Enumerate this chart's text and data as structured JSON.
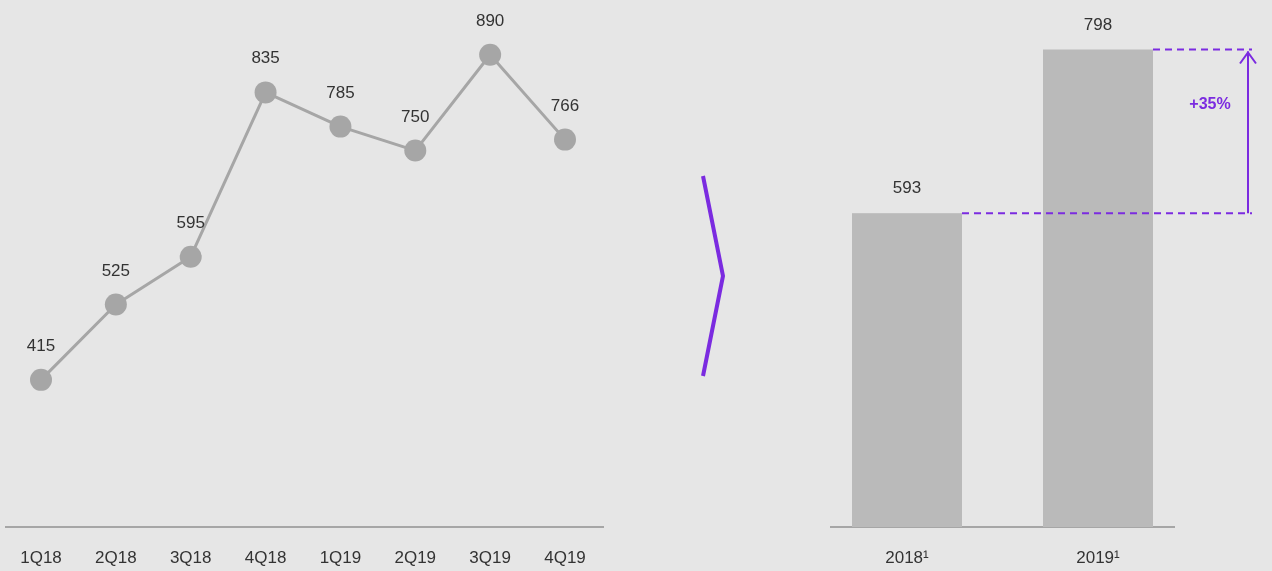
{
  "chart_data": [
    {
      "type": "line",
      "categories": [
        "1Q18",
        "2Q18",
        "3Q18",
        "4Q18",
        "1Q19",
        "2Q19",
        "3Q19",
        "4Q19"
      ],
      "series": [
        {
          "color": "#a6a6a6",
          "values": [
            415,
            525,
            595,
            835,
            785,
            750,
            890,
            766
          ]
        }
      ],
      "ylim": [
        200,
        970
      ],
      "marker": "circle",
      "data_labels": true
    },
    {
      "type": "bar",
      "categories": [
        "2018¹",
        "2019¹"
      ],
      "values": [
        593,
        798
      ],
      "color": "#bababa",
      "ylim": [
        200,
        860
      ],
      "data_labels": true,
      "annotations": [
        "+35%"
      ],
      "ref_lines": [
        {
          "axis": "y",
          "value": 593,
          "color": "#7b2be0",
          "line_style": "dashed"
        },
        {
          "axis": "y",
          "value": 798,
          "color": "#7b2be0",
          "line_style": "dashed"
        }
      ]
    }
  ]
}
